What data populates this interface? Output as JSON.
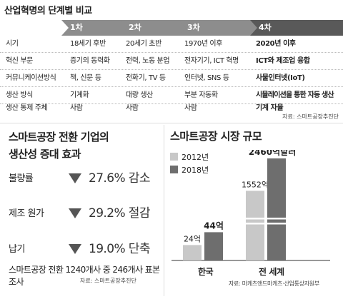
{
  "title": "산업혁명의 단계별 비교",
  "table": {
    "stages": [
      "1차",
      "2차",
      "3차",
      "4차"
    ],
    "rows": [
      {
        "label": "시기",
        "cells": [
          "18세기 후반",
          "20세기 초반",
          "1970년 이후",
          "2020년 이후"
        ]
      },
      {
        "label": "혁신 부문",
        "cells": [
          "증기의 동력화",
          "전력, 노동 분업",
          "전자기기, ICT 혁명",
          "ICT와 제조업 융합"
        ]
      },
      {
        "label": "커뮤니케이션방식",
        "cells": [
          "책, 신문 등",
          "전화기, TV 등",
          "인터넷, SNS 등",
          "사물인터넷(IoT)"
        ]
      },
      {
        "label": "생산 방식",
        "cells": [
          "기계화",
          "대량 생산",
          "부분 자동화",
          "시뮬레이션을 통한 자동 생산"
        ]
      },
      {
        "label": "생산 통제 주체",
        "cells": [
          "사람",
          "사람",
          "사람",
          "기계 자율"
        ]
      }
    ],
    "source": "자료: 스마트공장추진단"
  },
  "effect": {
    "title_line1": "스마트공장 전환 기업의",
    "title_line2": "생산성 증대 효과",
    "items": [
      {
        "label": "불량률",
        "value": "27.6% 감소"
      },
      {
        "label": "제조 원가",
        "value": "29.2% 절감"
      },
      {
        "label": "납기",
        "value": "19.0% 단축"
      }
    ],
    "note": "스마트공장 전환 1240개사 중 246개사 표본조사",
    "source": "자료: 스마트공장추진단"
  },
  "market": {
    "title": "스마트공장 시장 규모",
    "source": "자료: 마케츠앤드마케츠·산업통상자원부"
  },
  "chart_data": {
    "type": "bar",
    "categories": [
      "한국",
      "전 세계"
    ],
    "series": [
      {
        "name": "2012년",
        "values": [
          24,
          1552
        ],
        "labels": [
          "24억",
          "1552억"
        ],
        "color": "#c8c8c8"
      },
      {
        "name": "2018년",
        "values": [
          44,
          2460
        ],
        "labels": [
          "44억",
          "2460억달러"
        ],
        "color": "#6e6e6e"
      }
    ],
    "title": "스마트공장 시장 규모",
    "axis_break": true,
    "legend_position": "top-left",
    "grid": false
  }
}
